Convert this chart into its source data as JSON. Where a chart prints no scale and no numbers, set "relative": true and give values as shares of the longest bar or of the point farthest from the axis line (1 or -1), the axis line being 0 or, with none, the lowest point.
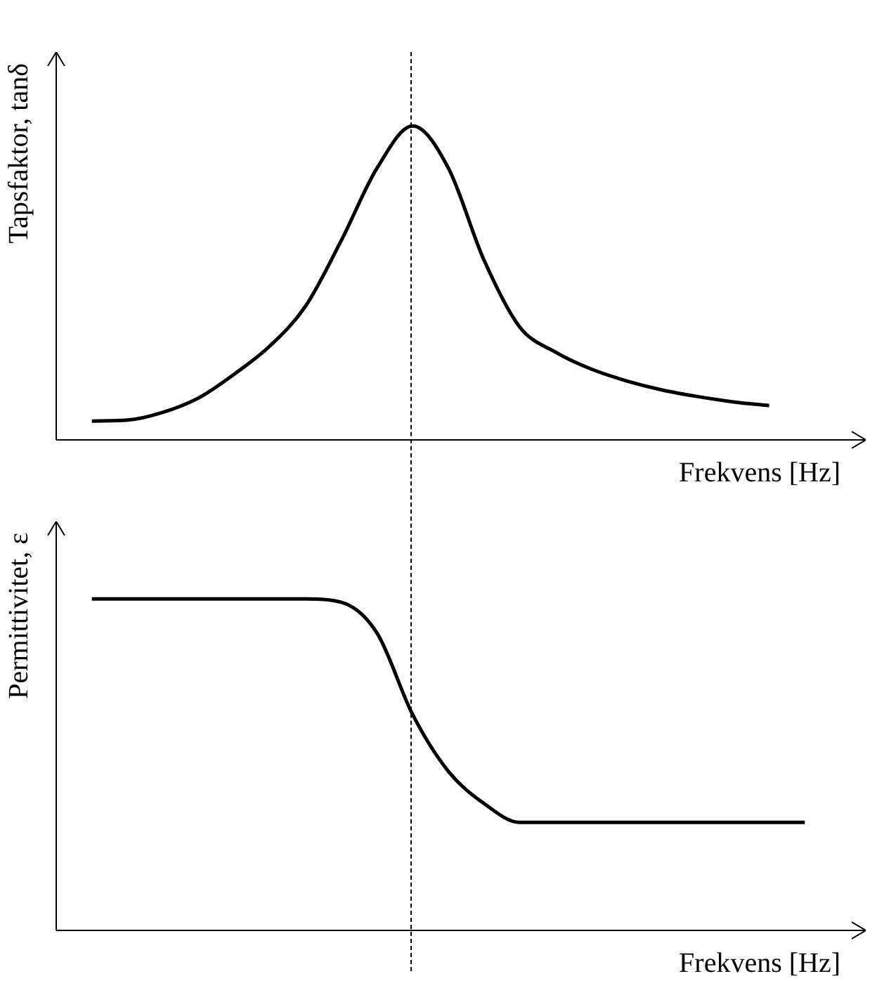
{
  "chart_data": [
    {
      "type": "line",
      "ylabel": "Tapsfaktor, tanδ",
      "xlabel": "Frekvens [Hz]",
      "relative": true,
      "tick_labels": false,
      "grid": false,
      "legend": false,
      "marker": "none",
      "line_style": "solid",
      "categories": [
        null,
        null,
        null,
        null,
        null,
        null,
        null,
        null,
        null,
        null,
        null,
        null,
        null,
        null,
        null,
        null,
        null,
        null,
        null,
        null,
        null,
        null,
        null
      ],
      "series": [
        {
          "color": "#000000",
          "values": [
            null,
            0.06,
            0.063,
            0.088,
            0.134,
            0.21,
            0.3,
            0.427,
            0.636,
            0.866,
            1,
            0.866,
            0.573,
            0.36,
            0.28,
            0.226,
            0.188,
            0.159,
            0.138,
            0.121,
            0.109,
            null,
            null
          ]
        }
      ]
    },
    {
      "type": "line",
      "ylabel": "Permittivitet, ε",
      "xlabel": "Frekvens [Hz]",
      "relative": true,
      "tick_labels": false,
      "grid": false,
      "legend": false,
      "marker": "none",
      "line_style": "solid",
      "categories": [
        null,
        null,
        null,
        null,
        null,
        null,
        null,
        null,
        null,
        null,
        null,
        null,
        null,
        null,
        null,
        null,
        null,
        null,
        null,
        null,
        null,
        null,
        null
      ],
      "series": [
        {
          "color": "#000000",
          "values": [
            null,
            1,
            1,
            1,
            1,
            1,
            1,
            1,
            0.99,
            0.897,
            0.651,
            0.48,
            0.383,
            0.326,
            0.326,
            0.326,
            0.326,
            0.326,
            0.326,
            0.326,
            0.326,
            0.326,
            null
          ]
        }
      ]
    }
  ]
}
